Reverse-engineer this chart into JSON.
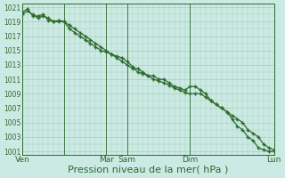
{
  "bg_color": "#cceae4",
  "grid_color": "#aaccbb",
  "line_color": "#2d6b2d",
  "marker_color": "#2d6b2d",
  "xlabel": "Pression niveau de la mer( hPa )",
  "xlabel_fontsize": 8,
  "ytick_labels": [
    1001,
    1003,
    1005,
    1007,
    1009,
    1011,
    1013,
    1015,
    1017,
    1019,
    1021
  ],
  "ylim": [
    1000.5,
    1021.5
  ],
  "xlim": [
    0,
    288
  ],
  "xtick_positions": [
    0,
    48,
    96,
    120,
    192,
    288
  ],
  "xtick_labels": [
    "Ven",
    "",
    "Mar",
    "Sam",
    "Dim",
    "Lun"
  ],
  "series1_x": [
    0,
    6,
    12,
    18,
    24,
    30,
    36,
    42,
    48,
    54,
    60,
    66,
    72,
    78,
    84,
    90,
    96,
    102,
    108,
    114,
    120,
    126,
    132,
    138,
    144,
    150,
    156,
    162,
    168,
    174,
    180,
    186,
    192,
    198,
    204,
    210,
    216,
    222,
    228,
    234,
    240,
    246,
    252,
    258,
    264,
    270,
    276,
    282,
    288
  ],
  "series1_y": [
    1020.0,
    1020.5,
    1020.0,
    1019.5,
    1019.8,
    1019.5,
    1019.0,
    1019.0,
    1019.0,
    1018.5,
    1018.0,
    1017.5,
    1017.0,
    1016.5,
    1016.0,
    1015.5,
    1015.0,
    1014.5,
    1014.0,
    1013.5,
    1013.0,
    1012.5,
    1012.5,
    1012.0,
    1011.5,
    1011.5,
    1011.0,
    1011.0,
    1010.5,
    1010.0,
    1009.8,
    1009.5,
    1010.0,
    1010.0,
    1009.5,
    1009.0,
    1008.0,
    1007.5,
    1007.0,
    1006.5,
    1006.0,
    1005.5,
    1005.0,
    1004.0,
    1003.5,
    1003.0,
    1002.0,
    1001.5,
    1001.2
  ],
  "series2_x": [
    0,
    6,
    12,
    18,
    24,
    30,
    36,
    42,
    48,
    54,
    60,
    66,
    72,
    78,
    84,
    90,
    96,
    102,
    108,
    114,
    120,
    126,
    132,
    138,
    144,
    150,
    156,
    162,
    168,
    174,
    180,
    186,
    192,
    198,
    204,
    210,
    216,
    222,
    228,
    234,
    240,
    246,
    252,
    258,
    264,
    270,
    276,
    282,
    288
  ],
  "series2_y": [
    1020.3,
    1020.8,
    1019.8,
    1019.8,
    1020.0,
    1019.2,
    1019.0,
    1019.2,
    1019.0,
    1018.0,
    1017.5,
    1017.0,
    1016.5,
    1016.0,
    1015.5,
    1015.0,
    1014.8,
    1014.5,
    1014.2,
    1014.0,
    1013.5,
    1012.8,
    1012.0,
    1011.8,
    1011.5,
    1011.0,
    1010.8,
    1010.5,
    1010.2,
    1009.8,
    1009.5,
    1009.2,
    1009.0,
    1009.0,
    1009.0,
    1008.5,
    1008.0,
    1007.5,
    1007.0,
    1006.5,
    1005.5,
    1004.5,
    1004.0,
    1003.0,
    1002.5,
    1001.5,
    1001.2,
    1001.0,
    1001.0
  ],
  "vline_positions": [
    48,
    96,
    120,
    192,
    288
  ],
  "vline_color": "#2d6b2d"
}
